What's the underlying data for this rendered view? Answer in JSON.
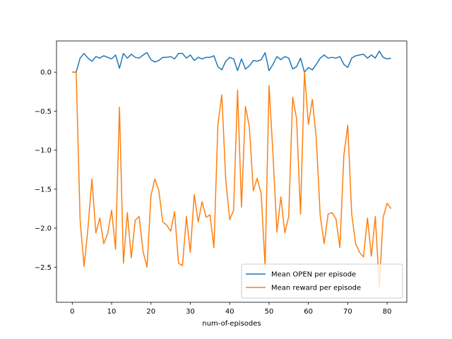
{
  "chart_data": {
    "type": "line",
    "title": "",
    "xlabel": "num-of-episodes",
    "ylabel": "",
    "xlim": [
      -4,
      85
    ],
    "ylim": [
      -2.95,
      0.4
    ],
    "xticks": [
      0,
      10,
      20,
      30,
      40,
      50,
      60,
      70,
      80
    ],
    "yticks": [
      0.0,
      -0.5,
      -1.0,
      -1.5,
      -2.0,
      -2.5
    ],
    "ytick_labels": [
      "0.0",
      "−0.5",
      "−1.0",
      "−1.5",
      "−2.0",
      "−2.5"
    ],
    "grid": false,
    "legend_position": "lower-right",
    "series": [
      {
        "name": "Mean OPEN per episode",
        "color": "#1f77b4",
        "x": [
          0,
          1,
          2,
          3,
          4,
          5,
          6,
          7,
          8,
          9,
          10,
          11,
          12,
          13,
          14,
          15,
          16,
          17,
          18,
          19,
          20,
          21,
          22,
          23,
          24,
          25,
          26,
          27,
          28,
          29,
          30,
          31,
          32,
          33,
          34,
          35,
          36,
          37,
          38,
          39,
          40,
          41,
          42,
          43,
          44,
          45,
          46,
          47,
          48,
          49,
          50,
          51,
          52,
          53,
          54,
          55,
          56,
          57,
          58,
          59,
          60,
          61,
          62,
          63,
          64,
          65,
          66,
          67,
          68,
          69,
          70,
          71,
          72,
          73,
          74,
          75,
          76,
          77,
          78,
          79,
          80,
          81
        ],
        "values": [
          0.0,
          0.0,
          0.18,
          0.24,
          0.18,
          0.14,
          0.2,
          0.18,
          0.21,
          0.19,
          0.17,
          0.22,
          0.05,
          0.24,
          0.18,
          0.23,
          0.19,
          0.18,
          0.22,
          0.25,
          0.16,
          0.13,
          0.15,
          0.19,
          0.19,
          0.2,
          0.17,
          0.24,
          0.24,
          0.18,
          0.22,
          0.15,
          0.19,
          0.17,
          0.19,
          0.19,
          0.21,
          0.07,
          0.03,
          0.14,
          0.19,
          0.17,
          0.02,
          0.17,
          0.04,
          0.08,
          0.15,
          0.14,
          0.16,
          0.25,
          0.02,
          0.1,
          0.2,
          0.16,
          0.2,
          0.18,
          0.04,
          0.07,
          0.18,
          0.0,
          0.06,
          0.03,
          0.1,
          0.18,
          0.22,
          0.18,
          0.19,
          0.18,
          0.2,
          0.1,
          0.06,
          0.18,
          0.21,
          0.22,
          0.23,
          0.18,
          0.22,
          0.18,
          0.27,
          0.19,
          0.17,
          0.18
        ]
      },
      {
        "name": "Mean reward per episode",
        "color": "#ff7f0e",
        "x": [
          0,
          1,
          2,
          3,
          4,
          5,
          6,
          7,
          8,
          9,
          10,
          11,
          12,
          13,
          14,
          15,
          16,
          17,
          18,
          19,
          20,
          21,
          22,
          23,
          24,
          25,
          26,
          27,
          28,
          29,
          30,
          31,
          32,
          33,
          34,
          35,
          36,
          37,
          38,
          39,
          40,
          41,
          42,
          43,
          44,
          45,
          46,
          47,
          48,
          49,
          50,
          51,
          52,
          53,
          54,
          55,
          56,
          57,
          58,
          59,
          60,
          61,
          62,
          63,
          64,
          65,
          66,
          67,
          68,
          69,
          70,
          71,
          72,
          73,
          74,
          75,
          76,
          77,
          78,
          79,
          80,
          81
        ],
        "values": [
          0.0,
          0.0,
          -1.9,
          -2.49,
          -2.0,
          -1.37,
          -2.06,
          -1.87,
          -2.2,
          -2.07,
          -1.77,
          -2.27,
          -0.45,
          -2.45,
          -1.8,
          -2.38,
          -1.9,
          -1.85,
          -2.3,
          -2.5,
          -1.58,
          -1.37,
          -1.52,
          -1.92,
          -1.96,
          -2.04,
          -1.79,
          -2.45,
          -2.48,
          -1.85,
          -2.31,
          -1.57,
          -1.92,
          -1.66,
          -1.86,
          -1.83,
          -2.25,
          -0.68,
          -0.29,
          -1.38,
          -1.89,
          -1.77,
          -0.23,
          -1.73,
          -0.44,
          -0.7,
          -1.52,
          -1.36,
          -1.56,
          -2.49,
          -0.17,
          -1.05,
          -2.05,
          -1.6,
          -2.06,
          -1.85,
          -0.32,
          -0.6,
          -1.82,
          0.0,
          -0.67,
          -0.35,
          -0.85,
          -1.84,
          -2.2,
          -1.82,
          -1.8,
          -1.88,
          -2.25,
          -1.07,
          -0.68,
          -1.82,
          -2.2,
          -2.31,
          -2.37,
          -1.87,
          -2.36,
          -1.85,
          -2.75,
          -1.86,
          -1.68,
          -1.75
        ]
      }
    ]
  }
}
